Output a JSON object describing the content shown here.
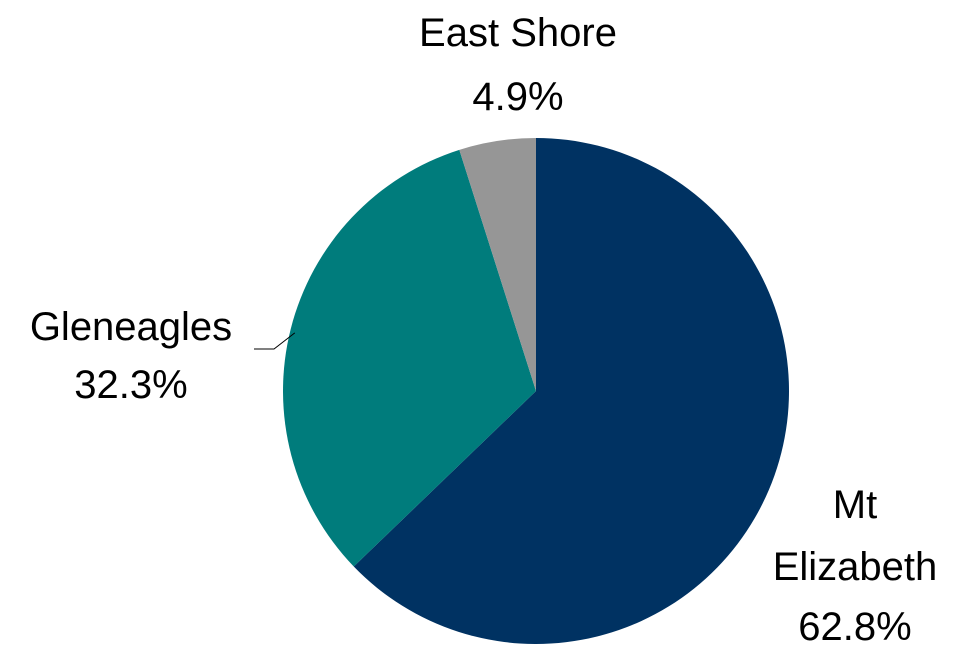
{
  "chart_data": {
    "type": "pie",
    "title": "",
    "start": "top",
    "direction": "clockwise",
    "slices": [
      {
        "name": "Mt Elizabeth",
        "label_lines": [
          "Mt",
          "Elizabeth"
        ],
        "value": 62.8,
        "value_label": "62.8%",
        "color": "#003262"
      },
      {
        "name": "Gleneagles",
        "label_lines": [
          "Gleneagles"
        ],
        "value": 32.3,
        "value_label": "32.3%",
        "color": "#007c7c"
      },
      {
        "name": "East Shore",
        "label_lines": [
          "East Shore"
        ],
        "value": 4.9,
        "value_label": "4.9%",
        "color": "#969696"
      }
    ],
    "legend": "none"
  }
}
